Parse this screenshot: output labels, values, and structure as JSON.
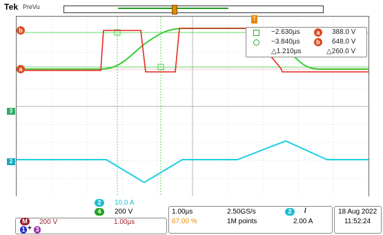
{
  "header": {
    "brand": "Tek",
    "mode": "PreVu"
  },
  "markers": {
    "ref_a": "a",
    "ref_b": "b",
    "ch3": "3",
    "ch2": "2",
    "trigger": "T"
  },
  "cursor_readout": {
    "a_time": "−2.630µs",
    "b_time": "−3.840µs",
    "delta_time": "△1.210µs",
    "a_value": "388.0 V",
    "b_value": "648.0 V",
    "delta_value": "△260.0 V"
  },
  "channel_panel": {
    "ch2": {
      "num": "2",
      "scale": "10.0 A"
    },
    "ch4": {
      "num": "4",
      "scale": "200 V"
    },
    "math": {
      "label": "M",
      "scale": "200 V",
      "time": "1.00µs",
      "expr_a": "1",
      "op": "+",
      "expr_b": "3"
    }
  },
  "horizontal": {
    "scale": "1.00µs",
    "trigger_pos": "67.00 %",
    "sample_rate": "2.50GS/s",
    "record_length": "1M points"
  },
  "trigger": {
    "source": "2",
    "slope": "/",
    "level": "2.00 A"
  },
  "datetime": {
    "date": "18 Aug 2022",
    "time": "11:52:24"
  },
  "colors": {
    "ref_a_trace": "#e8251f",
    "ch4_trace": "#33cc33",
    "ch2_trace": "#19cfe0",
    "badge": "#d94b22",
    "math": "#9b1f2f",
    "ch1": "#2432c8",
    "ch3": "#9b2fae"
  }
}
